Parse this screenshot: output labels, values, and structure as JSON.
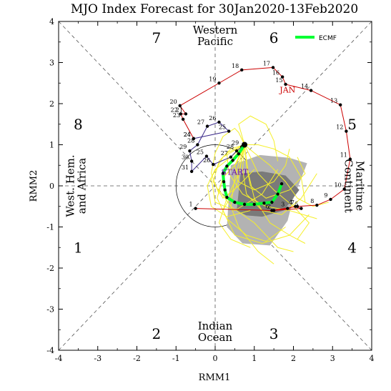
{
  "chart_data": {
    "type": "scatter",
    "title": "MJO Index Forecast for 30Jan2020-13Feb2020",
    "xlabel": "RMM1",
    "ylabel": "RMM2",
    "xlim": [
      -4,
      4
    ],
    "ylim": [
      -4,
      4
    ],
    "x_ticks": [
      "-4",
      "-3",
      "-2",
      "-1",
      "0",
      "1",
      "2",
      "3",
      "4"
    ],
    "y_ticks": [
      "-4",
      "-3",
      "-2",
      "-1",
      "0",
      "1",
      "2",
      "3",
      "4"
    ],
    "grid": false,
    "legend_position": "top-right",
    "legend": [
      {
        "label": "ECMF",
        "color": "#00ff33"
      }
    ],
    "phase_numbers": [
      {
        "label": "1",
        "x": -3.5,
        "y": -1.5
      },
      {
        "label": "2",
        "x": -1.5,
        "y": -3.6
      },
      {
        "label": "3",
        "x": 1.5,
        "y": -3.6
      },
      {
        "label": "4",
        "x": 3.5,
        "y": -1.5
      },
      {
        "label": "5",
        "x": 3.5,
        "y": 1.5
      },
      {
        "label": "6",
        "x": 1.5,
        "y": 3.6
      },
      {
        "label": "7",
        "x": -1.5,
        "y": 3.6
      },
      {
        "label": "8",
        "x": -3.5,
        "y": 1.5
      }
    ],
    "region_labels": [
      {
        "lines": [
          "Western",
          "Pacific"
        ],
        "x": 0,
        "y": 3.65,
        "rotate": 0
      },
      {
        "lines": [
          "Indian",
          "Ocean"
        ],
        "x": 0,
        "y": -3.55,
        "rotate": 0
      },
      {
        "lines": [
          "West. Hem.",
          "and Africa"
        ],
        "x": -3.55,
        "y": 0,
        "rotate": -90
      },
      {
        "lines": [
          "Maritime",
          "Continent"
        ],
        "x": 3.55,
        "y": 0,
        "rotate": 90
      }
    ],
    "month_labels": [
      {
        "label": "JAN",
        "x": 1.85,
        "y": 2.27,
        "color": "#cc0000"
      },
      {
        "label": "START",
        "x": 0.5,
        "y": 0.27,
        "color": "#6a0dad"
      }
    ],
    "observed_red": {
      "color": "#cc0000",
      "points": [
        {
          "day": "1",
          "x": -0.5,
          "y": -0.55
        },
        {
          "day": "2",
          "x": 1.5,
          "y": -0.6
        },
        {
          "day": "3",
          "x": 1.85,
          "y": -0.55
        },
        {
          "day": "4",
          "x": 2.05,
          "y": -0.5
        },
        {
          "day": "5",
          "x": 2.2,
          "y": -0.55
        },
        {
          "day": "6",
          "x": 1.45,
          "y": -0.6
        },
        {
          "day": "7",
          "x": 2.1,
          "y": -0.5
        },
        {
          "day": "8",
          "x": 2.6,
          "y": -0.47
        },
        {
          "day": "9",
          "x": 2.95,
          "y": -0.33
        },
        {
          "day": "10",
          "x": 3.3,
          "y": -0.08
        },
        {
          "day": "11",
          "x": 3.45,
          "y": 0.65
        },
        {
          "day": "12",
          "x": 3.35,
          "y": 1.33
        },
        {
          "day": "13",
          "x": 3.2,
          "y": 1.97
        },
        {
          "day": "14",
          "x": 2.45,
          "y": 2.32
        },
        {
          "day": "15",
          "x": 1.8,
          "y": 2.47
        },
        {
          "day": "16",
          "x": 1.72,
          "y": 2.65
        },
        {
          "day": "17",
          "x": 1.48,
          "y": 2.88
        },
        {
          "day": "18",
          "x": 0.68,
          "y": 2.82
        },
        {
          "day": "19",
          "x": 0.1,
          "y": 2.5
        },
        {
          "day": "20",
          "x": -0.9,
          "y": 1.95
        },
        {
          "day": "21",
          "x": -0.75,
          "y": 1.75
        },
        {
          "day": "22",
          "x": -0.88,
          "y": 1.75
        },
        {
          "day": "23",
          "x": -0.82,
          "y": 1.62
        },
        {
          "day": "24",
          "x": -0.55,
          "y": 1.15
        }
      ]
    },
    "observed_purple": {
      "color": "#3b2a8a",
      "points": [
        {
          "day": "24",
          "x": -0.55,
          "y": 1.15
        },
        {
          "day": "25",
          "x": 0.35,
          "y": 1.33
        },
        {
          "day": "26",
          "x": 0.1,
          "y": 1.55
        },
        {
          "day": "27",
          "x": -0.2,
          "y": 1.45
        },
        {
          "day": "28",
          "x": -0.45,
          "y": 1.0
        },
        {
          "day": "29",
          "x": -0.65,
          "y": 0.85
        },
        {
          "day": "30",
          "x": -0.6,
          "y": 0.6
        },
        {
          "day": "31",
          "x": -0.6,
          "y": 0.35
        },
        {
          "day": "25",
          "x": -0.22,
          "y": 0.72
        },
        {
          "day": "26",
          "x": -0.05,
          "y": 0.52
        },
        {
          "day": "27",
          "x": 0.4,
          "y": 0.7
        },
        {
          "day": "28",
          "x": 0.55,
          "y": 0.85
        },
        {
          "day": "29",
          "x": 0.68,
          "y": 0.95
        }
      ]
    },
    "forecast_ensemble_mean": {
      "name": "ECMF",
      "color": "#00ff33",
      "points": [
        {
          "x": 0.75,
          "y": 1.0
        },
        {
          "x": 0.6,
          "y": 0.78
        },
        {
          "x": 0.45,
          "y": 0.62
        },
        {
          "x": 0.3,
          "y": 0.48
        },
        {
          "x": 0.2,
          "y": 0.3
        },
        {
          "x": 0.22,
          "y": 0.1
        },
        {
          "x": 0.25,
          "y": -0.1
        },
        {
          "x": 0.3,
          "y": -0.28
        },
        {
          "x": 0.5,
          "y": -0.4
        },
        {
          "x": 0.75,
          "y": -0.45
        },
        {
          "x": 1.0,
          "y": -0.45
        },
        {
          "x": 1.25,
          "y": -0.42
        },
        {
          "x": 1.45,
          "y": -0.4
        },
        {
          "x": 1.6,
          "y": -0.2
        },
        {
          "x": 1.7,
          "y": 0.05
        }
      ]
    },
    "forecast_start": {
      "x": 0.75,
      "y": 1.0
    },
    "forecast_uncertainty": {
      "outer": [
        [
          0.3,
          -1.0
        ],
        [
          0.4,
          0.5
        ],
        [
          1.15,
          0.75
        ],
        [
          1.9,
          0.68
        ],
        [
          2.35,
          0.55
        ],
        [
          2.0,
          -0.3
        ],
        [
          1.85,
          -0.85
        ],
        [
          1.4,
          -1.45
        ],
        [
          0.7,
          -1.4
        ]
      ],
      "inner": [
        [
          0.55,
          -0.6
        ],
        [
          0.65,
          0.3
        ],
        [
          1.2,
          0.35
        ],
        [
          1.8,
          0.25
        ],
        [
          2.15,
          -0.1
        ],
        [
          1.75,
          -0.6
        ],
        [
          1.2,
          -0.75
        ],
        [
          0.8,
          -0.72
        ]
      ]
    },
    "ensemble_members": [
      [
        [
          0.75,
          1.0
        ],
        [
          0.55,
          0.55
        ],
        [
          0.2,
          0.2
        ],
        [
          0.05,
          -0.3
        ],
        [
          0.3,
          -0.8
        ],
        [
          0.8,
          -1.2
        ],
        [
          1.3,
          -1.35
        ],
        [
          1.8,
          -1.0
        ]
      ],
      [
        [
          0.75,
          1.0
        ],
        [
          0.8,
          0.5
        ],
        [
          0.9,
          0.0
        ],
        [
          1.3,
          -0.3
        ],
        [
          1.9,
          -0.1
        ],
        [
          2.3,
          0.3
        ],
        [
          2.1,
          0.7
        ]
      ],
      [
        [
          0.75,
          1.0
        ],
        [
          0.4,
          0.7
        ],
        [
          0.0,
          0.4
        ],
        [
          -0.2,
          0.0
        ],
        [
          -0.1,
          -0.5
        ],
        [
          0.3,
          -0.75
        ],
        [
          0.9,
          -0.6
        ]
      ],
      [
        [
          0.75,
          1.0
        ],
        [
          0.9,
          0.7
        ],
        [
          1.1,
          0.3
        ],
        [
          1.5,
          -0.1
        ],
        [
          2.0,
          -0.5
        ],
        [
          2.4,
          -0.9
        ],
        [
          2.1,
          -1.3
        ]
      ],
      [
        [
          0.75,
          1.0
        ],
        [
          0.6,
          1.3
        ],
        [
          0.5,
          1.4
        ],
        [
          0.2,
          1.2
        ],
        [
          0.0,
          0.8
        ],
        [
          -0.1,
          0.3
        ],
        [
          0.1,
          -0.2
        ]
      ],
      [
        [
          0.75,
          1.0
        ],
        [
          0.3,
          0.5
        ],
        [
          0.1,
          -0.1
        ],
        [
          0.4,
          -0.5
        ],
        [
          1.0,
          -0.9
        ],
        [
          1.6,
          -1.5
        ],
        [
          2.0,
          -1.6
        ]
      ],
      [
        [
          0.75,
          1.0
        ],
        [
          1.0,
          0.8
        ],
        [
          1.4,
          0.5
        ],
        [
          1.8,
          0.1
        ],
        [
          2.1,
          -0.3
        ],
        [
          2.5,
          -0.5
        ],
        [
          2.9,
          -0.4
        ]
      ],
      [
        [
          0.75,
          1.0
        ],
        [
          0.5,
          0.2
        ],
        [
          0.4,
          -0.5
        ],
        [
          0.6,
          -1.0
        ],
        [
          1.1,
          -1.6
        ],
        [
          1.5,
          -1.9
        ]
      ],
      [
        [
          0.75,
          1.0
        ],
        [
          0.7,
          0.4
        ],
        [
          0.8,
          -0.2
        ],
        [
          1.2,
          -0.6
        ],
        [
          1.7,
          -0.7
        ],
        [
          2.2,
          -0.3
        ],
        [
          2.6,
          0.3
        ]
      ],
      [
        [
          0.75,
          1.0
        ],
        [
          0.2,
          0.7
        ],
        [
          -0.1,
          0.2
        ],
        [
          0.0,
          -0.4
        ],
        [
          0.5,
          -0.6
        ],
        [
          1.2,
          -0.2
        ],
        [
          1.6,
          0.4
        ]
      ],
      [
        [
          0.75,
          1.0
        ],
        [
          1.1,
          1.0
        ],
        [
          1.5,
          0.9
        ],
        [
          1.9,
          0.7
        ],
        [
          2.2,
          0.2
        ],
        [
          2.3,
          -0.4
        ]
      ],
      [
        [
          0.75,
          1.0
        ],
        [
          0.6,
          0.3
        ],
        [
          0.3,
          -0.3
        ],
        [
          0.1,
          -0.9
        ],
        [
          0.4,
          -1.3
        ],
        [
          0.9,
          -1.5
        ]
      ],
      [
        [
          0.75,
          1.0
        ],
        [
          0.4,
          0.9
        ],
        [
          0.1,
          0.6
        ],
        [
          -0.05,
          0.1
        ],
        [
          0.2,
          -0.3
        ],
        [
          0.6,
          0.0
        ],
        [
          1.0,
          0.4
        ]
      ],
      [
        [
          0.75,
          1.0
        ],
        [
          0.85,
          0.3
        ],
        [
          1.0,
          -0.3
        ],
        [
          1.4,
          -0.9
        ],
        [
          1.9,
          -1.2
        ],
        [
          2.3,
          -1.4
        ]
      ],
      [
        [
          0.75,
          1.0
        ],
        [
          0.5,
          0.5
        ],
        [
          0.6,
          0.1
        ],
        [
          1.0,
          -0.1
        ],
        [
          1.5,
          0.1
        ],
        [
          1.8,
          0.5
        ],
        [
          1.9,
          0.9
        ]
      ],
      [
        [
          0.75,
          1.0
        ],
        [
          0.3,
          0.8
        ],
        [
          0.35,
          0.3
        ],
        [
          0.7,
          -0.2
        ],
        [
          1.3,
          -0.5
        ],
        [
          1.9,
          -0.6
        ],
        [
          2.6,
          -0.8
        ]
      ],
      [
        [
          0.75,
          1.0
        ],
        [
          0.6,
          1.5
        ],
        [
          0.9,
          1.7
        ],
        [
          1.3,
          1.5
        ],
        [
          1.5,
          1.1
        ],
        [
          1.6,
          0.6
        ]
      ],
      [
        [
          0.75,
          1.0
        ],
        [
          0.55,
          0.0
        ],
        [
          0.2,
          -0.6
        ],
        [
          0.5,
          -1.2
        ],
        [
          1.2,
          -1.4
        ],
        [
          1.9,
          -1.2
        ],
        [
          2.4,
          -0.7
        ]
      ]
    ]
  }
}
